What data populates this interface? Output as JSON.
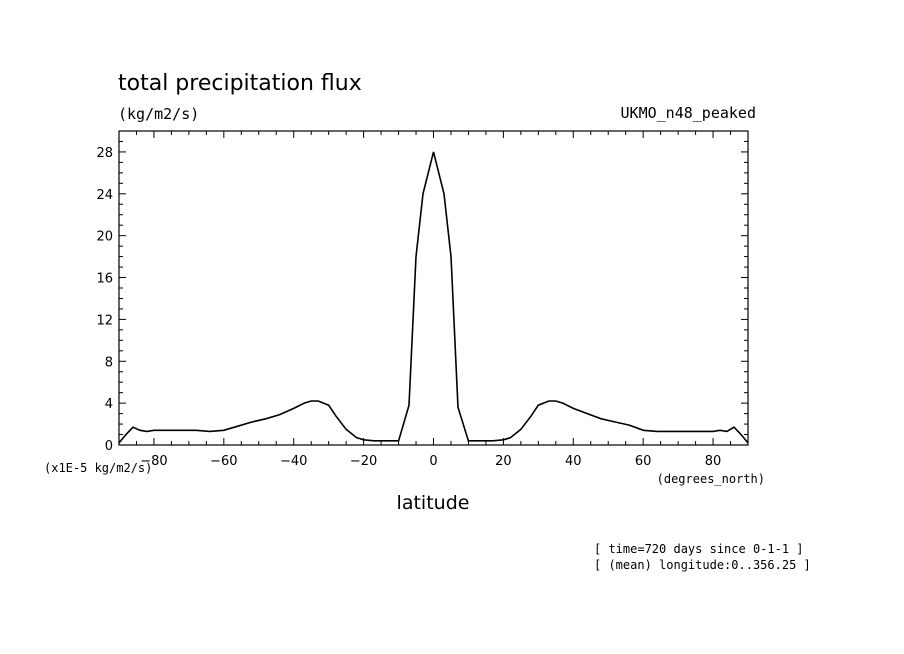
{
  "chart_data": {
    "type": "line",
    "title": "total precipitation flux",
    "units_label": "(kg/m2/s)",
    "dataset_label": "UKMO_n48_peaked",
    "xlabel": "latitude",
    "x_units": "(degrees_north)",
    "y_units": "(x1E-5 kg/m2/s)",
    "xlim": [
      -90,
      90
    ],
    "ylim": [
      0,
      30
    ],
    "x_ticks": [
      -80,
      -60,
      -40,
      -20,
      0,
      20,
      40,
      60,
      80
    ],
    "y_ticks": [
      0,
      4,
      8,
      12,
      16,
      20,
      24,
      28
    ],
    "grid": false,
    "annotations": [
      "[ time=720 days since 0-1-1 ]",
      "[ (mean) longitude:0..356.25 ]"
    ],
    "series": [
      {
        "x": [
          -90,
          -88,
          -86,
          -84,
          -82,
          -80,
          -76,
          -72,
          -68,
          -64,
          -60,
          -56,
          -52,
          -48,
          -44,
          -40,
          -37,
          -35,
          -33,
          -30,
          -28,
          -25,
          -22,
          -20,
          -17,
          -14,
          -10,
          -7,
          -5,
          -3,
          0,
          3,
          5,
          7,
          10,
          14,
          17,
          20,
          22,
          25,
          28,
          30,
          33,
          35,
          37,
          40,
          44,
          48,
          52,
          56,
          60,
          64,
          68,
          72,
          76,
          80,
          82,
          84,
          86,
          88,
          90
        ],
        "y": [
          0.2,
          1.0,
          1.7,
          1.4,
          1.3,
          1.4,
          1.4,
          1.4,
          1.4,
          1.3,
          1.4,
          1.8,
          2.2,
          2.5,
          2.9,
          3.5,
          4.0,
          4.2,
          4.2,
          3.8,
          2.8,
          1.5,
          0.7,
          0.5,
          0.4,
          0.4,
          0.4,
          3.8,
          18.0,
          24.0,
          28.0,
          24.0,
          18.0,
          3.6,
          0.4,
          0.4,
          0.4,
          0.5,
          0.7,
          1.5,
          2.8,
          3.8,
          4.2,
          4.2,
          4.0,
          3.5,
          3.0,
          2.5,
          2.2,
          1.9,
          1.4,
          1.3,
          1.3,
          1.3,
          1.3,
          1.3,
          1.4,
          1.3,
          1.7,
          1.0,
          0.2
        ]
      }
    ]
  }
}
